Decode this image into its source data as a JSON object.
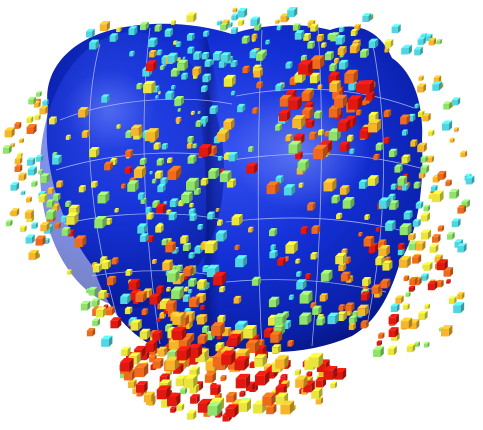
{
  "figure": {
    "colors": {
      "background": "#ffffff",
      "surface_dark": "#00106a",
      "surface_mid": "#0a26c4",
      "surface_light": "#2d4cf0",
      "surface_highlight": "#6f86ff",
      "mesh_line": "#c9d2ff",
      "colormap": [
        "#4fd6e0",
        "#8fe36a",
        "#e9e53a",
        "#f7b52a",
        "#f06a1c",
        "#e0180f"
      ]
    }
  }
}
